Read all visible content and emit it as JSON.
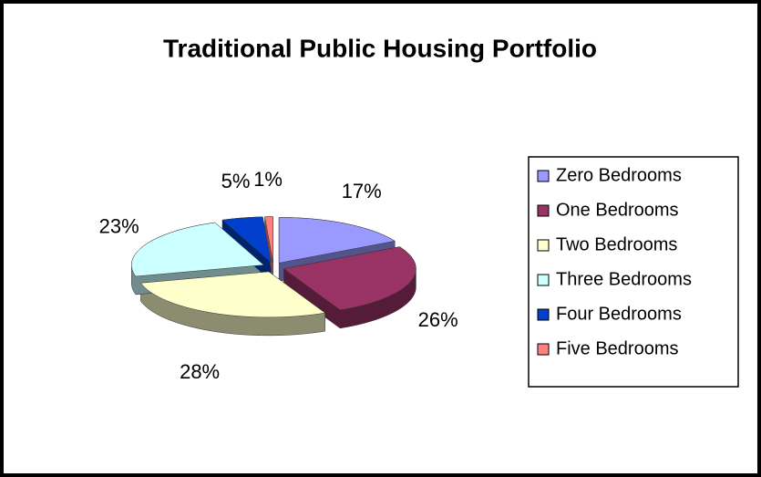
{
  "chart_data": {
    "type": "pie",
    "title": "Traditional Public Housing Portfolio",
    "categories": [
      "Zero Bedrooms",
      "One Bedrooms",
      "Two Bedrooms",
      "Three Bedrooms",
      "Four Bedrooms",
      "Five Bedrooms"
    ],
    "values": [
      17,
      26,
      28,
      23,
      5,
      1
    ],
    "value_labels": [
      "17%",
      "26%",
      "28%",
      "23%",
      "5%",
      "1%"
    ],
    "colors": [
      "#9999ff",
      "#993366",
      "#ffffcc",
      "#ccffff",
      "#0040cc",
      "#ff8080"
    ],
    "legend": "right"
  }
}
